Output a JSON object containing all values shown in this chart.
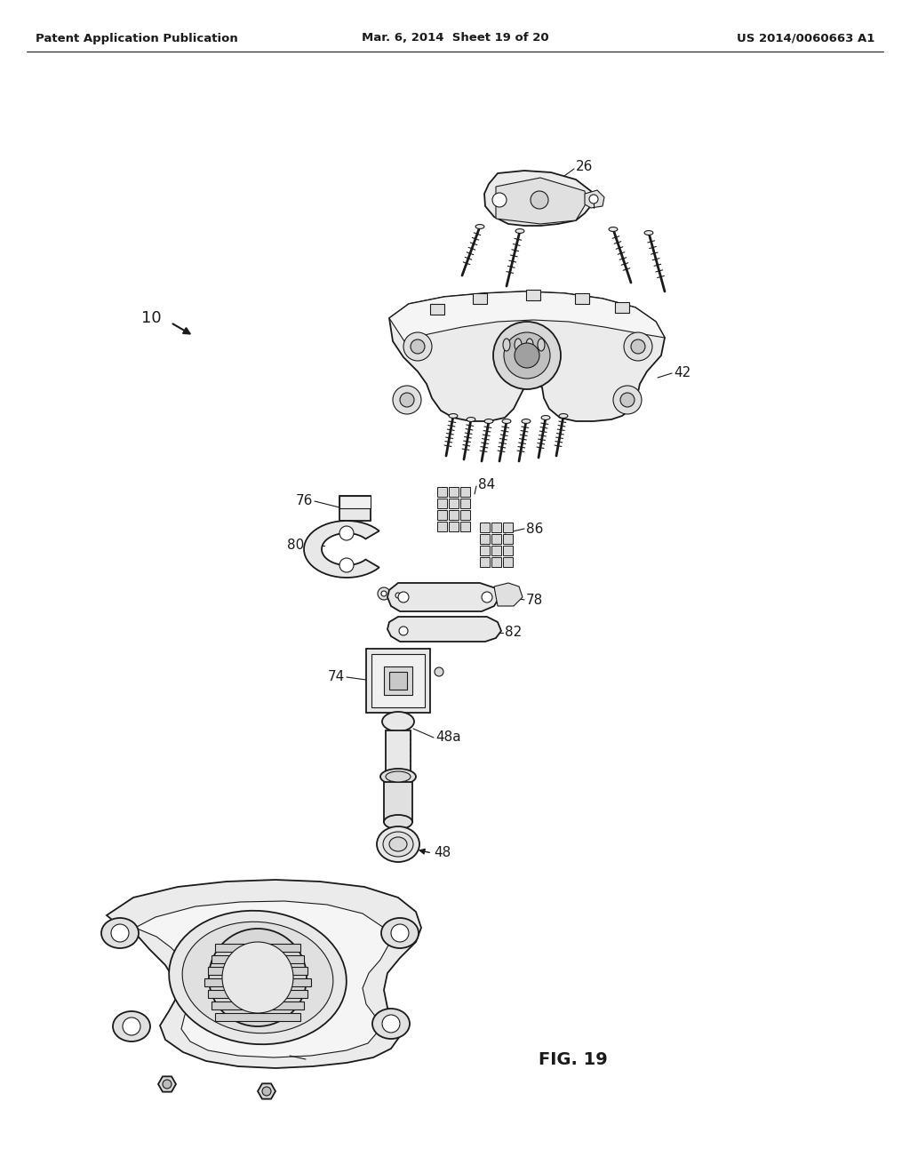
{
  "bg_color": "#ffffff",
  "line_color": "#1a1a1a",
  "header_left": "Patent Application Publication",
  "header_mid": "Mar. 6, 2014  Sheet 19 of 20",
  "header_right": "US 2014/0060663 A1",
  "fig_label": "FIG. 19",
  "fill_white": "#ffffff",
  "fill_light": "#f0f0f0",
  "fill_mid": "#e0e0e0",
  "fill_gray": "#c8c8c8",
  "fill_dark": "#aaaaaa",
  "fill_vdark": "#888888"
}
